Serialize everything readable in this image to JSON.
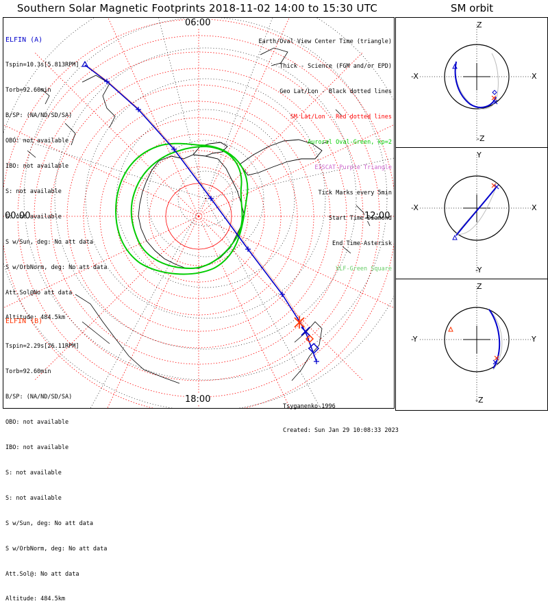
{
  "title": "Southern Solar Magnetic Footprints 2018-11-02 14:00 to 15:30 UTC",
  "orbit_title": "SM orbit",
  "local_time_labels": {
    "top": "06:00",
    "left": "00:00",
    "right": "12:00",
    "bottom": "18:00"
  },
  "sat_a": {
    "name": "ELFIN (A)",
    "color": "#0000cc",
    "lines": [
      "Tspin=10.3s[5.813RPM]",
      "Torb=92.60min",
      "B/SP: (NA/ND/SD/SA)",
      "OBO: not available",
      "IBO: not available",
      "S: not available",
      "S: not available",
      "S w/Sun, deg: No att data",
      "S w/OrbNorm, deg: No att data",
      "Att.Sol@No att data",
      "Altitude: 484.5km"
    ]
  },
  "sat_b": {
    "name": "ELFIN (B)",
    "color": "#ff3300",
    "lines": [
      "Tspin=2.29s[26.11RPM]",
      "Torb=92.60min",
      "B/SP: (NA/ND/SD/SA)",
      "OBO: not available",
      "IBO: not available",
      "S: not available",
      "S: not available",
      "S w/Sun, deg: No att data",
      "S w/OrbNorm, deg: No att data",
      "Att.Sol@: No att data",
      "Altitude: 484.5km"
    ]
  },
  "legend": [
    {
      "text": "Earth/Oval View Center Time (triangle)",
      "color": "#000000"
    },
    {
      "text": "Thick - Science (FGM and/or EPD)",
      "color": "#000000"
    },
    {
      "text": "Geo Lat/Lon - Black dotted lines",
      "color": "#000000"
    },
    {
      "text": "SM Lat/Lon - Red dotted lines",
      "color": "#ff0000"
    },
    {
      "text": "Auroral Oval-Green, kp=2",
      "color": "#00cc00"
    },
    {
      "text": "EISCAT-Purple Triangle",
      "color": "#cc66cc"
    },
    {
      "text": "Tick Marks every 5min",
      "color": "#000000"
    },
    {
      "text": "Start Time-Diamond",
      "color": "#000000"
    },
    {
      "text": "End Time-Asterisk",
      "color": "#000000"
    },
    {
      "text": "VLF-Green Square",
      "color": "#66cc66"
    }
  ],
  "credit": {
    "author": "Tsyganenko-1996",
    "created": "Created: Sun Jan 29 10:08:33 2023"
  },
  "orbit_panels": [
    {
      "top": "Z",
      "bottom": "-Z",
      "left": "-X",
      "right": "X"
    },
    {
      "top": "Y",
      "bottom": "-Y",
      "left": "-X",
      "right": "X"
    },
    {
      "top": "Z",
      "bottom": "-Z",
      "left": "-Y",
      "right": "Y"
    }
  ],
  "colors": {
    "track": "#0000cc",
    "sm_grid": "#ff0000",
    "geo_grid": "#000000",
    "oval": "#00cc00",
    "sat_b": "#ff3300"
  }
}
